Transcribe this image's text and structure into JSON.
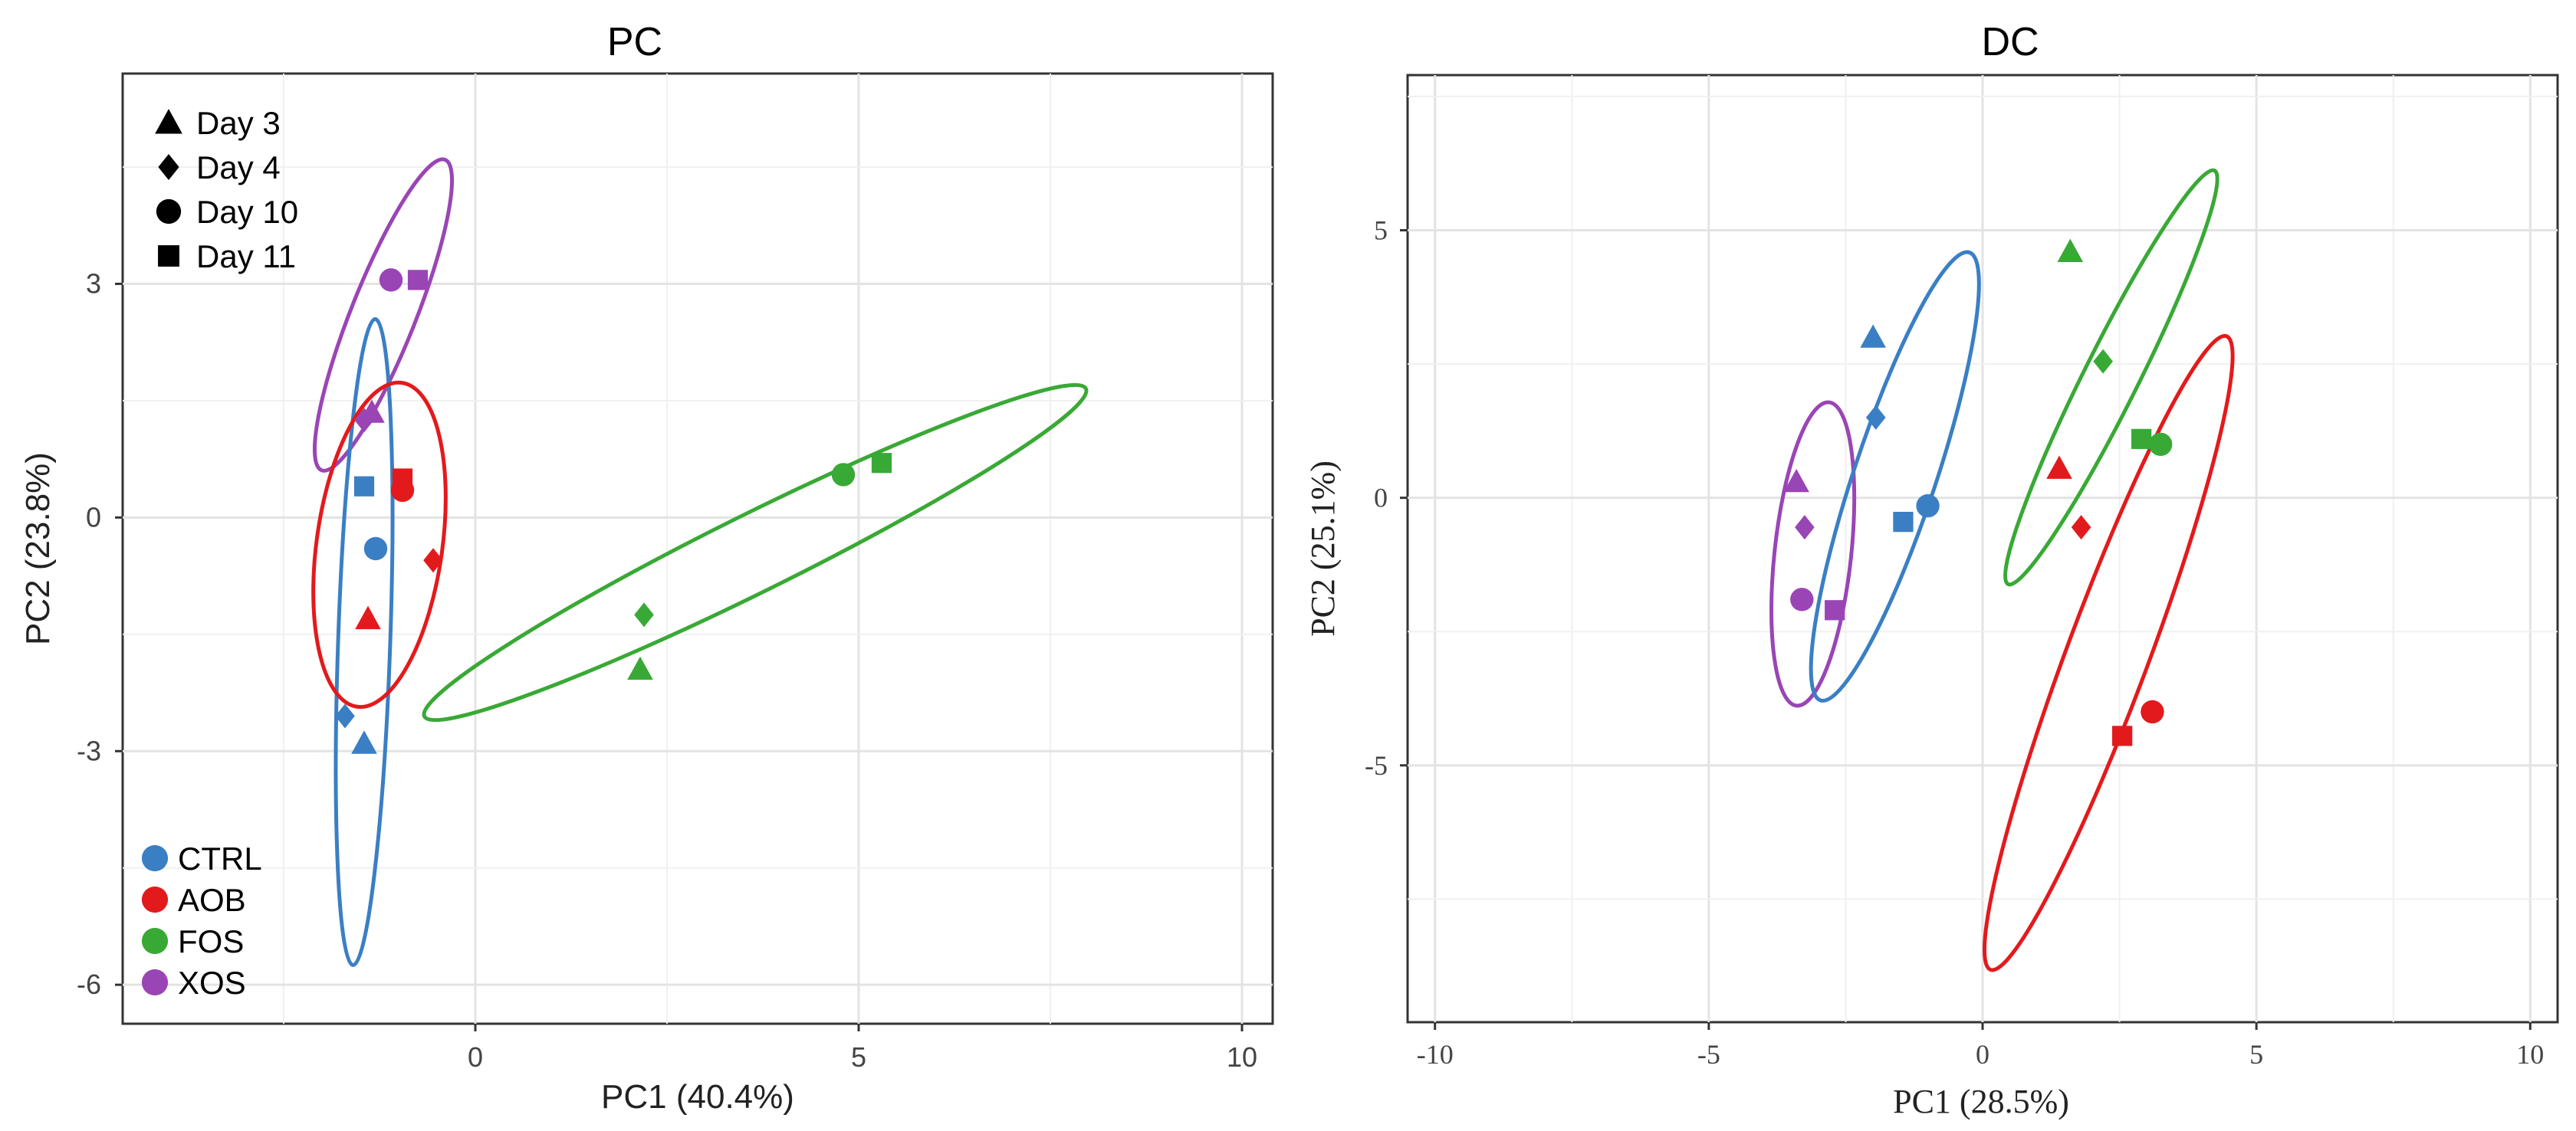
{
  "colors": {
    "CTRL": "#3a7fc4",
    "AOB": "#e31a1c",
    "FOS": "#39a935",
    "XOS": "#9a45b5"
  },
  "legend_shapes": [
    {
      "label": "Day 3",
      "shape": "triangle"
    },
    {
      "label": "Day 4",
      "shape": "diamond"
    },
    {
      "label": "Day 10",
      "shape": "circle"
    },
    {
      "label": "Day 11",
      "shape": "square"
    }
  ],
  "legend_groups": [
    "CTRL",
    "AOB",
    "FOS",
    "XOS"
  ],
  "chart_data": [
    {
      "type": "scatter",
      "title": "PC",
      "xlabel": "PC1 (40.4%)",
      "ylabel": "PC2 (23.8%)",
      "xlim": [
        -4.6,
        10.4
      ],
      "ylim": [
        -6.5,
        5.7
      ],
      "xticks": [
        0,
        5,
        10
      ],
      "yticks": [
        3,
        0,
        -3,
        -6
      ],
      "tick_labels_x": [
        "0",
        "5",
        "10"
      ],
      "tick_labels_y": [
        "3",
        "0",
        "-3",
        "-6"
      ],
      "grid": true,
      "legend": "top-left (shapes), bottom-left (groups)",
      "points": [
        {
          "group": "XOS",
          "day": "Day 10",
          "x": -1.1,
          "y": 3.05
        },
        {
          "group": "XOS",
          "day": "Day 11",
          "x": -0.75,
          "y": 3.05
        },
        {
          "group": "XOS",
          "day": "Day 4",
          "x": -1.45,
          "y": 1.25
        },
        {
          "group": "XOS",
          "day": "Day 3",
          "x": -1.35,
          "y": 1.35
        },
        {
          "group": "CTRL",
          "day": "Day 11",
          "x": -1.45,
          "y": 0.4
        },
        {
          "group": "CTRL",
          "day": "Day 10",
          "x": -1.3,
          "y": -0.4
        },
        {
          "group": "CTRL",
          "day": "Day 4",
          "x": -1.7,
          "y": -2.55
        },
        {
          "group": "CTRL",
          "day": "Day 3",
          "x": -1.45,
          "y": -2.9
        },
        {
          "group": "AOB",
          "day": "Day 10",
          "x": -0.95,
          "y": 0.35
        },
        {
          "group": "AOB",
          "day": "Day 11",
          "x": -0.95,
          "y": 0.5
        },
        {
          "group": "AOB",
          "day": "Day 4",
          "x": -0.55,
          "y": -0.55
        },
        {
          "group": "AOB",
          "day": "Day 3",
          "x": -1.4,
          "y": -1.3
        },
        {
          "group": "FOS",
          "day": "Day 10",
          "x": 4.8,
          "y": 0.55
        },
        {
          "group": "FOS",
          "day": "Day 11",
          "x": 5.3,
          "y": 0.7
        },
        {
          "group": "FOS",
          "day": "Day 4",
          "x": 2.2,
          "y": -1.25
        },
        {
          "group": "FOS",
          "day": "Day 3",
          "x": 2.15,
          "y": -1.95
        }
      ],
      "ellipses": [
        {
          "group": "XOS",
          "cx": -1.2,
          "cy": 2.6,
          "rx_len": 2.15,
          "ry_len": 0.42,
          "angle_deg": -68
        },
        {
          "group": "CTRL",
          "cx": -1.45,
          "cy": -1.6,
          "rx_len": 4.15,
          "ry_len": 0.34,
          "angle_deg": -88
        },
        {
          "group": "AOB",
          "cx": -1.25,
          "cy": -0.35,
          "rx_len": 2.1,
          "ry_len": 0.82,
          "angle_deg": -82
        },
        {
          "group": "FOS",
          "cx": 3.65,
          "cy": -0.45,
          "rx_len": 4.8,
          "ry_len": 0.5,
          "angle_deg": -26
        }
      ]
    },
    {
      "type": "scatter",
      "title": "DC",
      "xlabel": "PC1 (28.5%)",
      "ylabel": "PC2 (25.1%)",
      "xlim": [
        -10.5,
        10.5
      ],
      "ylim": [
        -9.8,
        7.9
      ],
      "xticks": [
        -10,
        -5,
        0,
        5,
        10
      ],
      "yticks": [
        5,
        0,
        -5
      ],
      "tick_labels_x": [
        "-10",
        "-5",
        "0",
        "5",
        "10"
      ],
      "tick_labels_y": [
        "5",
        "0",
        "-5"
      ],
      "grid": true,
      "legend": "none",
      "points": [
        {
          "group": "XOS",
          "day": "Day 3",
          "x": -3.4,
          "y": 0.3
        },
        {
          "group": "XOS",
          "day": "Day 4",
          "x": -3.25,
          "y": -0.55
        },
        {
          "group": "XOS",
          "day": "Day 10",
          "x": -3.3,
          "y": -1.9
        },
        {
          "group": "XOS",
          "day": "Day 11",
          "x": -2.7,
          "y": -2.1
        },
        {
          "group": "CTRL",
          "day": "Day 3",
          "x": -2.0,
          "y": 3.0
        },
        {
          "group": "CTRL",
          "day": "Day 4",
          "x": -1.95,
          "y": 1.5
        },
        {
          "group": "CTRL",
          "day": "Day 10",
          "x": -1.0,
          "y": -0.15
        },
        {
          "group": "CTRL",
          "day": "Day 11",
          "x": -1.45,
          "y": -0.45
        },
        {
          "group": "AOB",
          "day": "Day 3",
          "x": 1.4,
          "y": 0.55
        },
        {
          "group": "AOB",
          "day": "Day 4",
          "x": 1.8,
          "y": -0.55
        },
        {
          "group": "AOB",
          "day": "Day 10",
          "x": 3.1,
          "y": -4.0
        },
        {
          "group": "AOB",
          "day": "Day 11",
          "x": 2.55,
          "y": -4.45
        },
        {
          "group": "FOS",
          "day": "Day 3",
          "x": 1.6,
          "y": 4.6
        },
        {
          "group": "FOS",
          "day": "Day 4",
          "x": 2.2,
          "y": 2.55
        },
        {
          "group": "FOS",
          "day": "Day 11",
          "x": 2.9,
          "y": 1.1
        },
        {
          "group": "FOS",
          "day": "Day 10",
          "x": 3.25,
          "y": 1.0
        }
      ],
      "ellipses": [
        {
          "group": "XOS",
          "cx": -3.1,
          "cy": -1.05,
          "rx_len": 2.85,
          "ry_len": 0.7,
          "angle_deg": -84
        },
        {
          "group": "CTRL",
          "cx": -1.6,
          "cy": 0.4,
          "rx_len": 4.4,
          "ry_len": 0.75,
          "angle_deg": -72
        },
        {
          "group": "AOB",
          "cx": 2.3,
          "cy": -2.9,
          "rx_len": 6.3,
          "ry_len": 0.75,
          "angle_deg": -70
        },
        {
          "group": "FOS",
          "cx": 2.35,
          "cy": 2.25,
          "rx_len": 4.3,
          "ry_len": 0.5,
          "angle_deg": -64
        }
      ]
    }
  ]
}
